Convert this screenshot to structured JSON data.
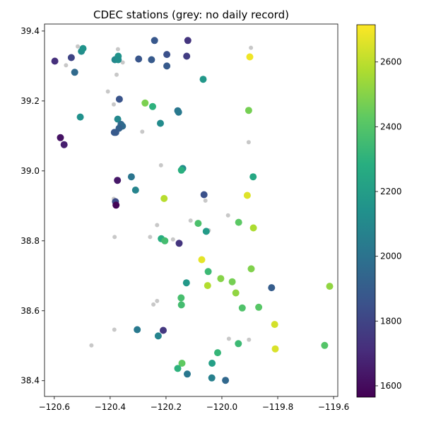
{
  "chart_data": {
    "type": "scatter",
    "title": "CDEC stations (grey: no daily record)",
    "xlabel": "",
    "ylabel": "",
    "xlim": [
      -120.635,
      -119.585
    ],
    "ylim": [
      38.355,
      39.42
    ],
    "xticks": [
      -120.6,
      -120.4,
      -120.2,
      -120.0,
      -119.8,
      -119.6
    ],
    "xtick_labels": [
      "−120.6",
      "−120.4",
      "−120.2",
      "−120.0",
      "−119.8",
      "−119.6"
    ],
    "yticks": [
      38.4,
      38.6,
      38.8,
      39.0,
      39.2,
      39.4
    ],
    "ytick_labels": [
      "38.4",
      "38.6",
      "38.8",
      "39.0",
      "39.2",
      "39.4"
    ],
    "grid": false,
    "colorbar": {
      "colormap": "viridis",
      "min": 1565,
      "max": 2715,
      "ticks": [
        1600,
        1800,
        2000,
        2200,
        2400,
        2600
      ],
      "tick_labels": [
        "1600",
        "1800",
        "2000",
        "2200",
        "2400",
        "2600"
      ]
    },
    "series": [
      {
        "role": "no daily record",
        "color": "#c8c8c8",
        "points": [
          [
            -120.372,
            39.348
          ],
          [
            -120.558,
            39.302
          ],
          [
            -120.516,
            39.356
          ],
          [
            -120.355,
            39.31
          ],
          [
            -120.377,
            39.275
          ],
          [
            -120.408,
            39.227
          ],
          [
            -120.387,
            39.19
          ],
          [
            -120.285,
            39.112
          ],
          [
            -120.218,
            39.016
          ],
          [
            -120.387,
            38.92
          ],
          [
            -120.384,
            38.811
          ],
          [
            -120.257,
            38.811
          ],
          [
            -120.232,
            38.845
          ],
          [
            -120.175,
            38.804
          ],
          [
            -120.112,
            38.858
          ],
          [
            -120.059,
            38.915
          ],
          [
            -120.047,
            38.83
          ],
          [
            -119.978,
            38.873
          ],
          [
            -120.245,
            38.618
          ],
          [
            -120.232,
            38.628
          ],
          [
            -120.385,
            38.546
          ],
          [
            -120.467,
            38.501
          ],
          [
            -119.975,
            38.52
          ],
          [
            -119.903,
            38.517
          ],
          [
            -119.896,
            39.352
          ],
          [
            -119.904,
            39.082
          ],
          [
            -120.038,
            38.412
          ]
        ]
      },
      {
        "role": "daily record",
        "points": [
          [
            -120.598,
            39.314,
            1720
          ],
          [
            -120.539,
            39.324,
            1800
          ],
          [
            -120.527,
            39.282,
            1960
          ],
          [
            -120.503,
            39.342,
            2120
          ],
          [
            -120.497,
            39.35,
            2150
          ],
          [
            -120.383,
            39.318,
            2100
          ],
          [
            -120.371,
            39.328,
            2150
          ],
          [
            -120.371,
            39.318,
            2130
          ],
          [
            -120.298,
            39.32,
            1870
          ],
          [
            -120.252,
            39.318,
            1890
          ],
          [
            -120.241,
            39.373,
            1880
          ],
          [
            -120.197,
            39.333,
            1850
          ],
          [
            -120.122,
            39.373,
            1740
          ],
          [
            -120.197,
            39.3,
            1890
          ],
          [
            -120.126,
            39.328,
            1770
          ],
          [
            -120.067,
            39.262,
            2170
          ],
          [
            -119.9,
            39.326,
            2690
          ],
          [
            -120.367,
            39.205,
            1860
          ],
          [
            -120.275,
            39.194,
            2480
          ],
          [
            -120.248,
            39.184,
            2300
          ],
          [
            -120.158,
            39.172,
            2010
          ],
          [
            -120.155,
            39.168,
            2030
          ],
          [
            -120.507,
            39.154,
            2140
          ],
          [
            -120.373,
            39.148,
            2100
          ],
          [
            -120.22,
            39.136,
            2110
          ],
          [
            -120.361,
            39.133,
            1950
          ],
          [
            -120.356,
            39.128,
            1960
          ],
          [
            -120.368,
            39.122,
            1920
          ],
          [
            -120.385,
            39.11,
            1880
          ],
          [
            -120.38,
            39.11,
            1890
          ],
          [
            -120.578,
            39.095,
            1620
          ],
          [
            -120.565,
            39.075,
            1660
          ],
          [
            -119.904,
            39.173,
            2470
          ],
          [
            -120.14,
            39.007,
            2120
          ],
          [
            -120.145,
            39.002,
            2290
          ],
          [
            -119.888,
            38.983,
            2250
          ],
          [
            -120.324,
            38.983,
            2010
          ],
          [
            -120.374,
            38.973,
            1640
          ],
          [
            -120.309,
            38.945,
            2080
          ],
          [
            -120.207,
            38.921,
            2590
          ],
          [
            -120.064,
            38.932,
            1850
          ],
          [
            -119.909,
            38.93,
            2660
          ],
          [
            -120.381,
            38.912,
            1820
          ],
          [
            -120.379,
            38.902,
            1580
          ],
          [
            -120.085,
            38.85,
            2380
          ],
          [
            -119.94,
            38.853,
            2420
          ],
          [
            -120.056,
            38.827,
            2190
          ],
          [
            -119.887,
            38.837,
            2570
          ],
          [
            -120.217,
            38.806,
            2280
          ],
          [
            -120.204,
            38.8,
            2360
          ],
          [
            -120.153,
            38.793,
            1740
          ],
          [
            -120.072,
            38.746,
            2670
          ],
          [
            -120.049,
            38.712,
            2340
          ],
          [
            -119.895,
            38.72,
            2490
          ],
          [
            -120.127,
            38.68,
            2180
          ],
          [
            -120.004,
            38.692,
            2500
          ],
          [
            -119.963,
            38.683,
            2470
          ],
          [
            -120.051,
            38.672,
            2580
          ],
          [
            -119.95,
            38.651,
            2520
          ],
          [
            -119.822,
            38.666,
            1900
          ],
          [
            -119.614,
            38.67,
            2520
          ],
          [
            -120.146,
            38.637,
            2370
          ],
          [
            -120.145,
            38.617,
            2360
          ],
          [
            -119.927,
            38.608,
            2390
          ],
          [
            -119.868,
            38.61,
            2410
          ],
          [
            -120.303,
            38.546,
            2030
          ],
          [
            -120.21,
            38.544,
            1750
          ],
          [
            -120.228,
            38.528,
            2080
          ],
          [
            -119.811,
            38.561,
            2640
          ],
          [
            -119.941,
            38.506,
            2340
          ],
          [
            -119.809,
            38.491,
            2650
          ],
          [
            -119.632,
            38.501,
            2400
          ],
          [
            -120.143,
            38.45,
            2430
          ],
          [
            -120.015,
            38.48,
            2320
          ],
          [
            -120.035,
            38.45,
            2210
          ],
          [
            -120.158,
            38.435,
            2300
          ],
          [
            -120.124,
            38.419,
            2020
          ],
          [
            -120.036,
            38.408,
            2060
          ],
          [
            -119.987,
            38.401,
            1950
          ]
        ]
      }
    ]
  }
}
